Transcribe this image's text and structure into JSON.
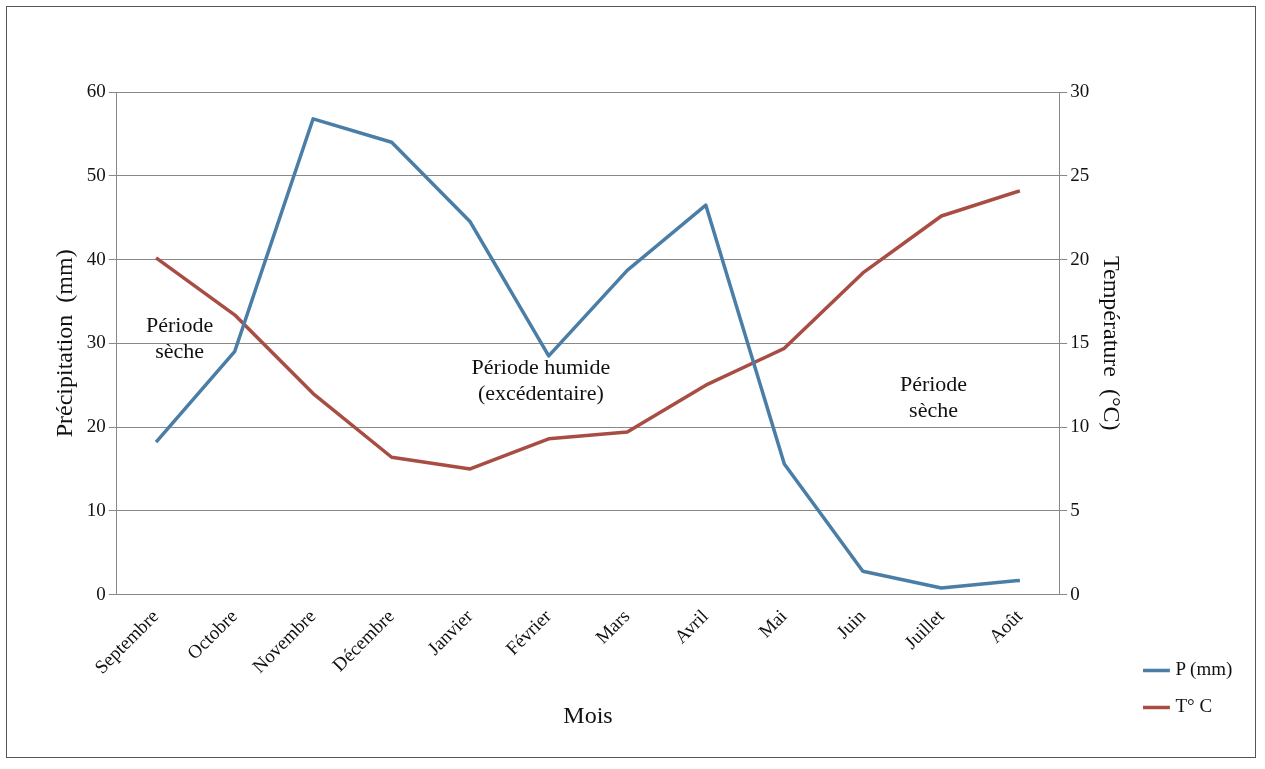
{
  "chart_data": {
    "type": "line",
    "xlabel": "Mois",
    "ylabel": "Précipitation  (mm)",
    "y2label": "Température  (°C)",
    "categories": [
      "Septembre",
      "Octobre",
      "Novembre",
      "Décembre",
      "Janvier",
      "Février",
      "Mars",
      "Avril",
      "Mai",
      "Juin",
      "Juillet",
      "Août"
    ],
    "series": [
      {
        "name": "P (mm)",
        "color": "#4a7ea6",
        "values": [
          18.2,
          29,
          56.8,
          54,
          44.5,
          28.5,
          38.7,
          46.5,
          15.6,
          2.8,
          0.8,
          1.7
        ]
      },
      {
        "name": "T° C",
        "color": "#a84d43",
        "axis": "y2",
        "values": [
          20.1,
          16.7,
          12,
          8.2,
          7.5,
          9.3,
          9.7,
          12.5,
          14.7,
          19.2,
          22.6,
          24.1
        ]
      }
    ],
    "ylim": [
      0,
      60
    ],
    "yticks": [
      0,
      10,
      20,
      30,
      40,
      50,
      60
    ],
    "y2lim": [
      0,
      30
    ],
    "y2ticks": [
      0,
      5,
      10,
      15,
      20,
      25,
      30
    ],
    "grid": "y",
    "legend": "right",
    "marker": "none",
    "line_style": "solid",
    "annotations": [
      "Période\nsèche",
      "Période humide\n(excédentaire)",
      "Période\nsèche"
    ]
  }
}
